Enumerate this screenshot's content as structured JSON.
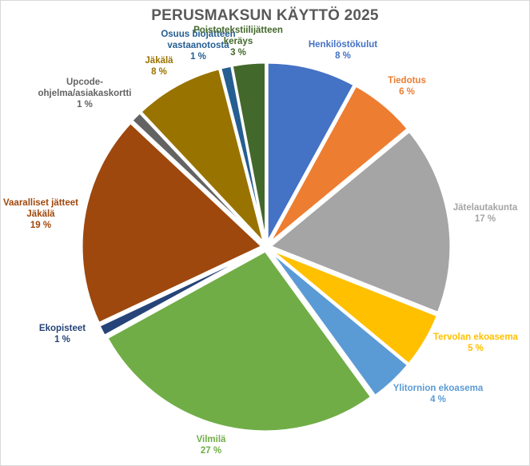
{
  "chart_data": {
    "type": "pie",
    "title": "PERUSMAKSUN KÄYTTÖ 2025",
    "slices": [
      {
        "label": [
          "Henkilöstökulut"
        ],
        "value": 8,
        "pct": "8 %",
        "color": "#4472c4"
      },
      {
        "label": [
          "Tiedotus"
        ],
        "value": 6,
        "pct": "6 %",
        "color": "#ed7d31"
      },
      {
        "label": [
          "Jätelautakunta"
        ],
        "value": 17,
        "pct": "17 %",
        "color": "#a5a5a5"
      },
      {
        "label": [
          "Tervolan ekoasema"
        ],
        "value": 5,
        "pct": "5 %",
        "color": "#ffc000"
      },
      {
        "label": [
          "Ylitornion ekoasema"
        ],
        "value": 4,
        "pct": "4 %",
        "color": "#5b9bd5"
      },
      {
        "label": [
          "Vilmilä"
        ],
        "value": 27,
        "pct": "27 %",
        "color": "#70ad47"
      },
      {
        "label": [
          "Ekopisteet"
        ],
        "value": 1,
        "pct": "1 %",
        "color": "#264478"
      },
      {
        "label": [
          "Vaaralliset jätteet",
          "Jäkälä"
        ],
        "value": 19,
        "pct": "19 %",
        "color": "#9e480e"
      },
      {
        "label": [
          "Upcode-",
          "ohjelma/asiakaskortti"
        ],
        "value": 1,
        "pct": "1 %",
        "color": "#636363"
      },
      {
        "label": [
          "Jäkälä"
        ],
        "value": 8,
        "pct": "8 %",
        "color": "#997300"
      },
      {
        "label": [
          "Osuus biojätteen",
          "vastaanotosta"
        ],
        "value": 1,
        "pct": "1 %",
        "color": "#255e91"
      },
      {
        "label": [
          "Poistotekstiilijätteen",
          "keräys"
        ],
        "value": 3,
        "pct": "3 %",
        "color": "#43682b"
      }
    ]
  }
}
